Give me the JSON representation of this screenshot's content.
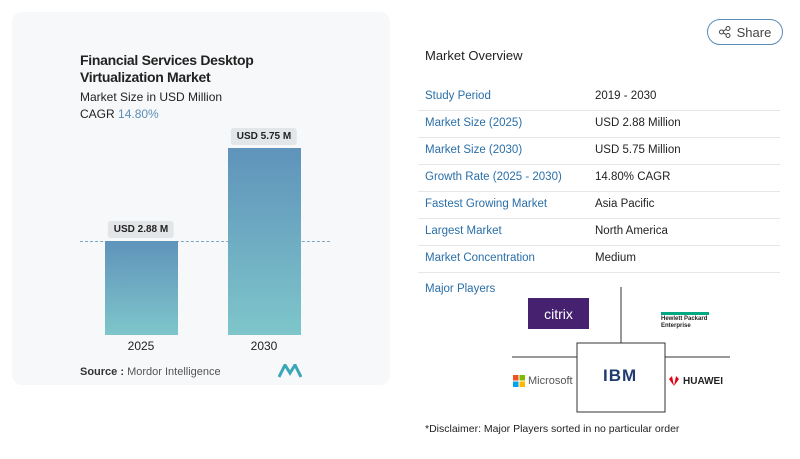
{
  "chart_data": {
    "type": "bar",
    "title": "Financial Services Desktop Virtualization Market",
    "subtitle": "Market Size in USD Million",
    "cagr_label": "CAGR",
    "cagr": "14.80%",
    "categories": [
      "2025",
      "2030"
    ],
    "values": [
      2.88,
      5.75
    ],
    "value_labels": [
      "USD 2.88 M",
      "USD 5.75 M"
    ],
    "color": "#6a9fc0",
    "source_label": "Source :",
    "source": "Mordor Intelligence"
  },
  "share": "Share",
  "overview": {
    "title": "Market Overview",
    "rows": [
      [
        "Study Period",
        "2019 - 2030"
      ],
      [
        "Market Size (2025)",
        "USD 2.88 Million"
      ],
      [
        "Market Size (2030)",
        "USD 5.75 Million"
      ],
      [
        "Growth Rate (2025 - 2030)",
        "14.80% CAGR"
      ],
      [
        "Fastest Growing Market",
        "Asia Pacific"
      ],
      [
        "Largest Market",
        "North America"
      ],
      [
        "Market Concentration",
        "Medium"
      ]
    ]
  },
  "players": {
    "title": "Major Players",
    "logos": [
      "citrix",
      "Hewlett Packard Enterprise",
      "IBM",
      "Microsoft",
      "HUAWEI"
    ]
  },
  "disclaimer": "*Disclaimer: Major Players sorted in no particular order"
}
